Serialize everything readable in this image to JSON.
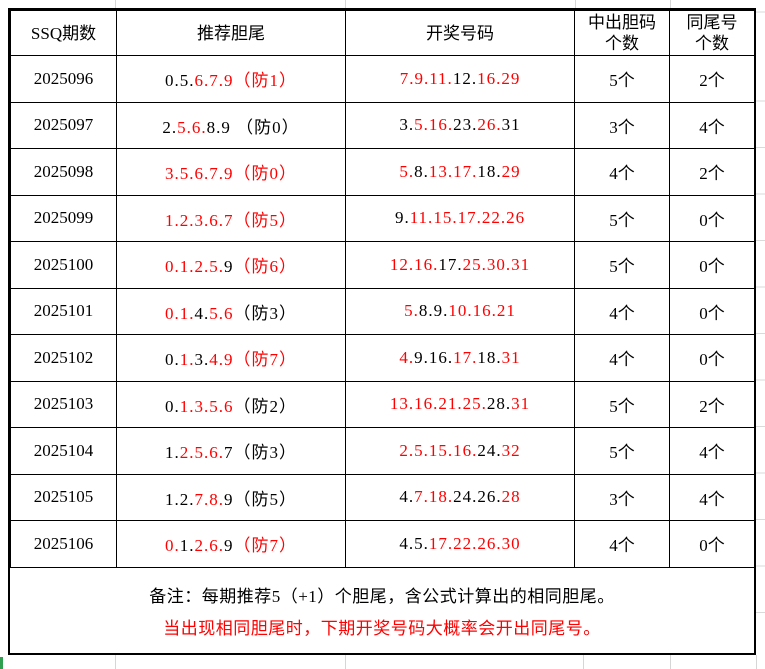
{
  "colors": {
    "red": "#fe0000",
    "black": "#000000",
    "grid": "#d6d6d6",
    "selection_green": "#2f9e4f"
  },
  "table": {
    "headers": {
      "period": "SSQ期数",
      "recommend": "推荐胆尾",
      "draw": "开奖号码",
      "hits": "中出胆码\n个数",
      "same_tail": "同尾号\n个数"
    }
  },
  "rows": [
    {
      "period": "2025096",
      "recommend": [
        [
          "0.",
          "k"
        ],
        [
          "5.",
          "k"
        ],
        [
          "6.",
          "r"
        ],
        [
          "7.",
          "r"
        ],
        [
          "9",
          "r"
        ],
        [
          "（防1）",
          "r"
        ]
      ],
      "draw": [
        [
          "7.",
          "r"
        ],
        [
          "9.",
          "r"
        ],
        [
          "11.",
          "r"
        ],
        [
          "12.",
          "k"
        ],
        [
          "16.",
          "r"
        ],
        [
          "29",
          "r"
        ]
      ],
      "hits": "5个",
      "same_tail": "2个"
    },
    {
      "period": "2025097",
      "recommend": [
        [
          "2.",
          "k"
        ],
        [
          "5.",
          "r"
        ],
        [
          "6.",
          "r"
        ],
        [
          "8.",
          "k"
        ],
        [
          "9 ",
          "k"
        ],
        [
          "（防0）",
          "k"
        ]
      ],
      "draw": [
        [
          "3.",
          "k"
        ],
        [
          "5.",
          "r"
        ],
        [
          "16.",
          "r"
        ],
        [
          "23.",
          "k"
        ],
        [
          "26.",
          "r"
        ],
        [
          "31",
          "k"
        ]
      ],
      "hits": "3个",
      "same_tail": "4个"
    },
    {
      "period": "2025098",
      "recommend": [
        [
          "3.",
          "r"
        ],
        [
          "5.",
          "r"
        ],
        [
          "6.",
          "r"
        ],
        [
          "7.",
          "r"
        ],
        [
          "9",
          "r"
        ],
        [
          "（防0）",
          "r"
        ]
      ],
      "draw": [
        [
          "5.",
          "r"
        ],
        [
          "8.",
          "k"
        ],
        [
          "13.",
          "r"
        ],
        [
          "17.",
          "r"
        ],
        [
          "18.",
          "k"
        ],
        [
          "29",
          "r"
        ]
      ],
      "hits": "4个",
      "same_tail": "2个"
    },
    {
      "period": "2025099",
      "recommend": [
        [
          "1.",
          "r"
        ],
        [
          "2.",
          "r"
        ],
        [
          "3.",
          "r"
        ],
        [
          "6.",
          "r"
        ],
        [
          "7",
          "r"
        ],
        [
          "（防5）",
          "r"
        ]
      ],
      "draw": [
        [
          "9.",
          "k"
        ],
        [
          "11.",
          "r"
        ],
        [
          "15.",
          "r"
        ],
        [
          "17.",
          "r"
        ],
        [
          "22.",
          "r"
        ],
        [
          "26",
          "r"
        ]
      ],
      "hits": "5个",
      "same_tail": "0个"
    },
    {
      "period": "2025100",
      "recommend": [
        [
          "0.",
          "r"
        ],
        [
          "1.",
          "r"
        ],
        [
          "2.",
          "r"
        ],
        [
          "5.",
          "r"
        ],
        [
          "9",
          "k"
        ],
        [
          "（防6）",
          "r"
        ]
      ],
      "draw": [
        [
          "12.",
          "r"
        ],
        [
          "16.",
          "r"
        ],
        [
          "17.",
          "k"
        ],
        [
          "25.",
          "r"
        ],
        [
          "30.",
          "r"
        ],
        [
          "31",
          "r"
        ]
      ],
      "hits": "5个",
      "same_tail": "0个"
    },
    {
      "period": "2025101",
      "recommend": [
        [
          "0.",
          "r"
        ],
        [
          "1.",
          "r"
        ],
        [
          "4.",
          "k"
        ],
        [
          "5.",
          "r"
        ],
        [
          "6",
          "r"
        ],
        [
          "（防3）",
          "k"
        ]
      ],
      "draw": [
        [
          "5.",
          "r"
        ],
        [
          "8.",
          "k"
        ],
        [
          "9.",
          "k"
        ],
        [
          "10.",
          "r"
        ],
        [
          "16.",
          "r"
        ],
        [
          "21",
          "r"
        ]
      ],
      "hits": "4个",
      "same_tail": "0个"
    },
    {
      "period": "2025102",
      "recommend": [
        [
          "0.",
          "k"
        ],
        [
          "1.",
          "r"
        ],
        [
          "3.",
          "k"
        ],
        [
          "4.",
          "r"
        ],
        [
          "9",
          "r"
        ],
        [
          "（防7）",
          "r"
        ]
      ],
      "draw": [
        [
          "4.",
          "r"
        ],
        [
          "9.",
          "k"
        ],
        [
          "16.",
          "k"
        ],
        [
          "17.",
          "r"
        ],
        [
          "18.",
          "k"
        ],
        [
          "31",
          "r"
        ]
      ],
      "hits": "4个",
      "same_tail": "0个"
    },
    {
      "period": "2025103",
      "recommend": [
        [
          "0.",
          "k"
        ],
        [
          "1.",
          "r"
        ],
        [
          "3.",
          "r"
        ],
        [
          "5.",
          "r"
        ],
        [
          "6",
          "r"
        ],
        [
          "（防2）",
          "k"
        ]
      ],
      "draw": [
        [
          "13.",
          "r"
        ],
        [
          "16.",
          "r"
        ],
        [
          "21.",
          "r"
        ],
        [
          "25.",
          "r"
        ],
        [
          "28.",
          "k"
        ],
        [
          "31",
          "r"
        ]
      ],
      "hits": "5个",
      "same_tail": "2个"
    },
    {
      "period": "2025104",
      "recommend": [
        [
          "1.",
          "k"
        ],
        [
          "2.",
          "r"
        ],
        [
          "5.",
          "r"
        ],
        [
          "6.",
          "r"
        ],
        [
          "7",
          "k"
        ],
        [
          "（防3）",
          "k"
        ]
      ],
      "draw": [
        [
          "2.",
          "r"
        ],
        [
          "5.",
          "r"
        ],
        [
          "15.",
          "r"
        ],
        [
          "16.",
          "r"
        ],
        [
          "24.",
          "k"
        ],
        [
          "32",
          "r"
        ]
      ],
      "hits": "5个",
      "same_tail": "4个"
    },
    {
      "period": "2025105",
      "recommend": [
        [
          "1.",
          "k"
        ],
        [
          "2.",
          "k"
        ],
        [
          "7.",
          "r"
        ],
        [
          "8.",
          "r"
        ],
        [
          "9",
          "k"
        ],
        [
          "（防5）",
          "k"
        ]
      ],
      "draw": [
        [
          "4.",
          "k"
        ],
        [
          "7.",
          "r"
        ],
        [
          "18.",
          "r"
        ],
        [
          "24.",
          "k"
        ],
        [
          "26.",
          "k"
        ],
        [
          "28",
          "r"
        ]
      ],
      "hits": "3个",
      "same_tail": "4个"
    },
    {
      "period": "2025106",
      "recommend": [
        [
          "0.",
          "r"
        ],
        [
          "1.",
          "k"
        ],
        [
          "2.",
          "r"
        ],
        [
          "6.",
          "r"
        ],
        [
          "9",
          "k"
        ],
        [
          "（防7）",
          "r"
        ]
      ],
      "draw": [
        [
          "4.",
          "k"
        ],
        [
          "5.",
          "k"
        ],
        [
          "17.",
          "r"
        ],
        [
          "22.",
          "r"
        ],
        [
          "26.",
          "r"
        ],
        [
          "30",
          "r"
        ]
      ],
      "hits": "4个",
      "same_tail": "0个"
    }
  ],
  "notes": {
    "line1": "备注：每期推荐5（+1）个胆尾，含公式计算出的相同胆尾。",
    "line2": "当出现相同胆尾时，下期开奖号码大概率会开出同尾号。"
  }
}
